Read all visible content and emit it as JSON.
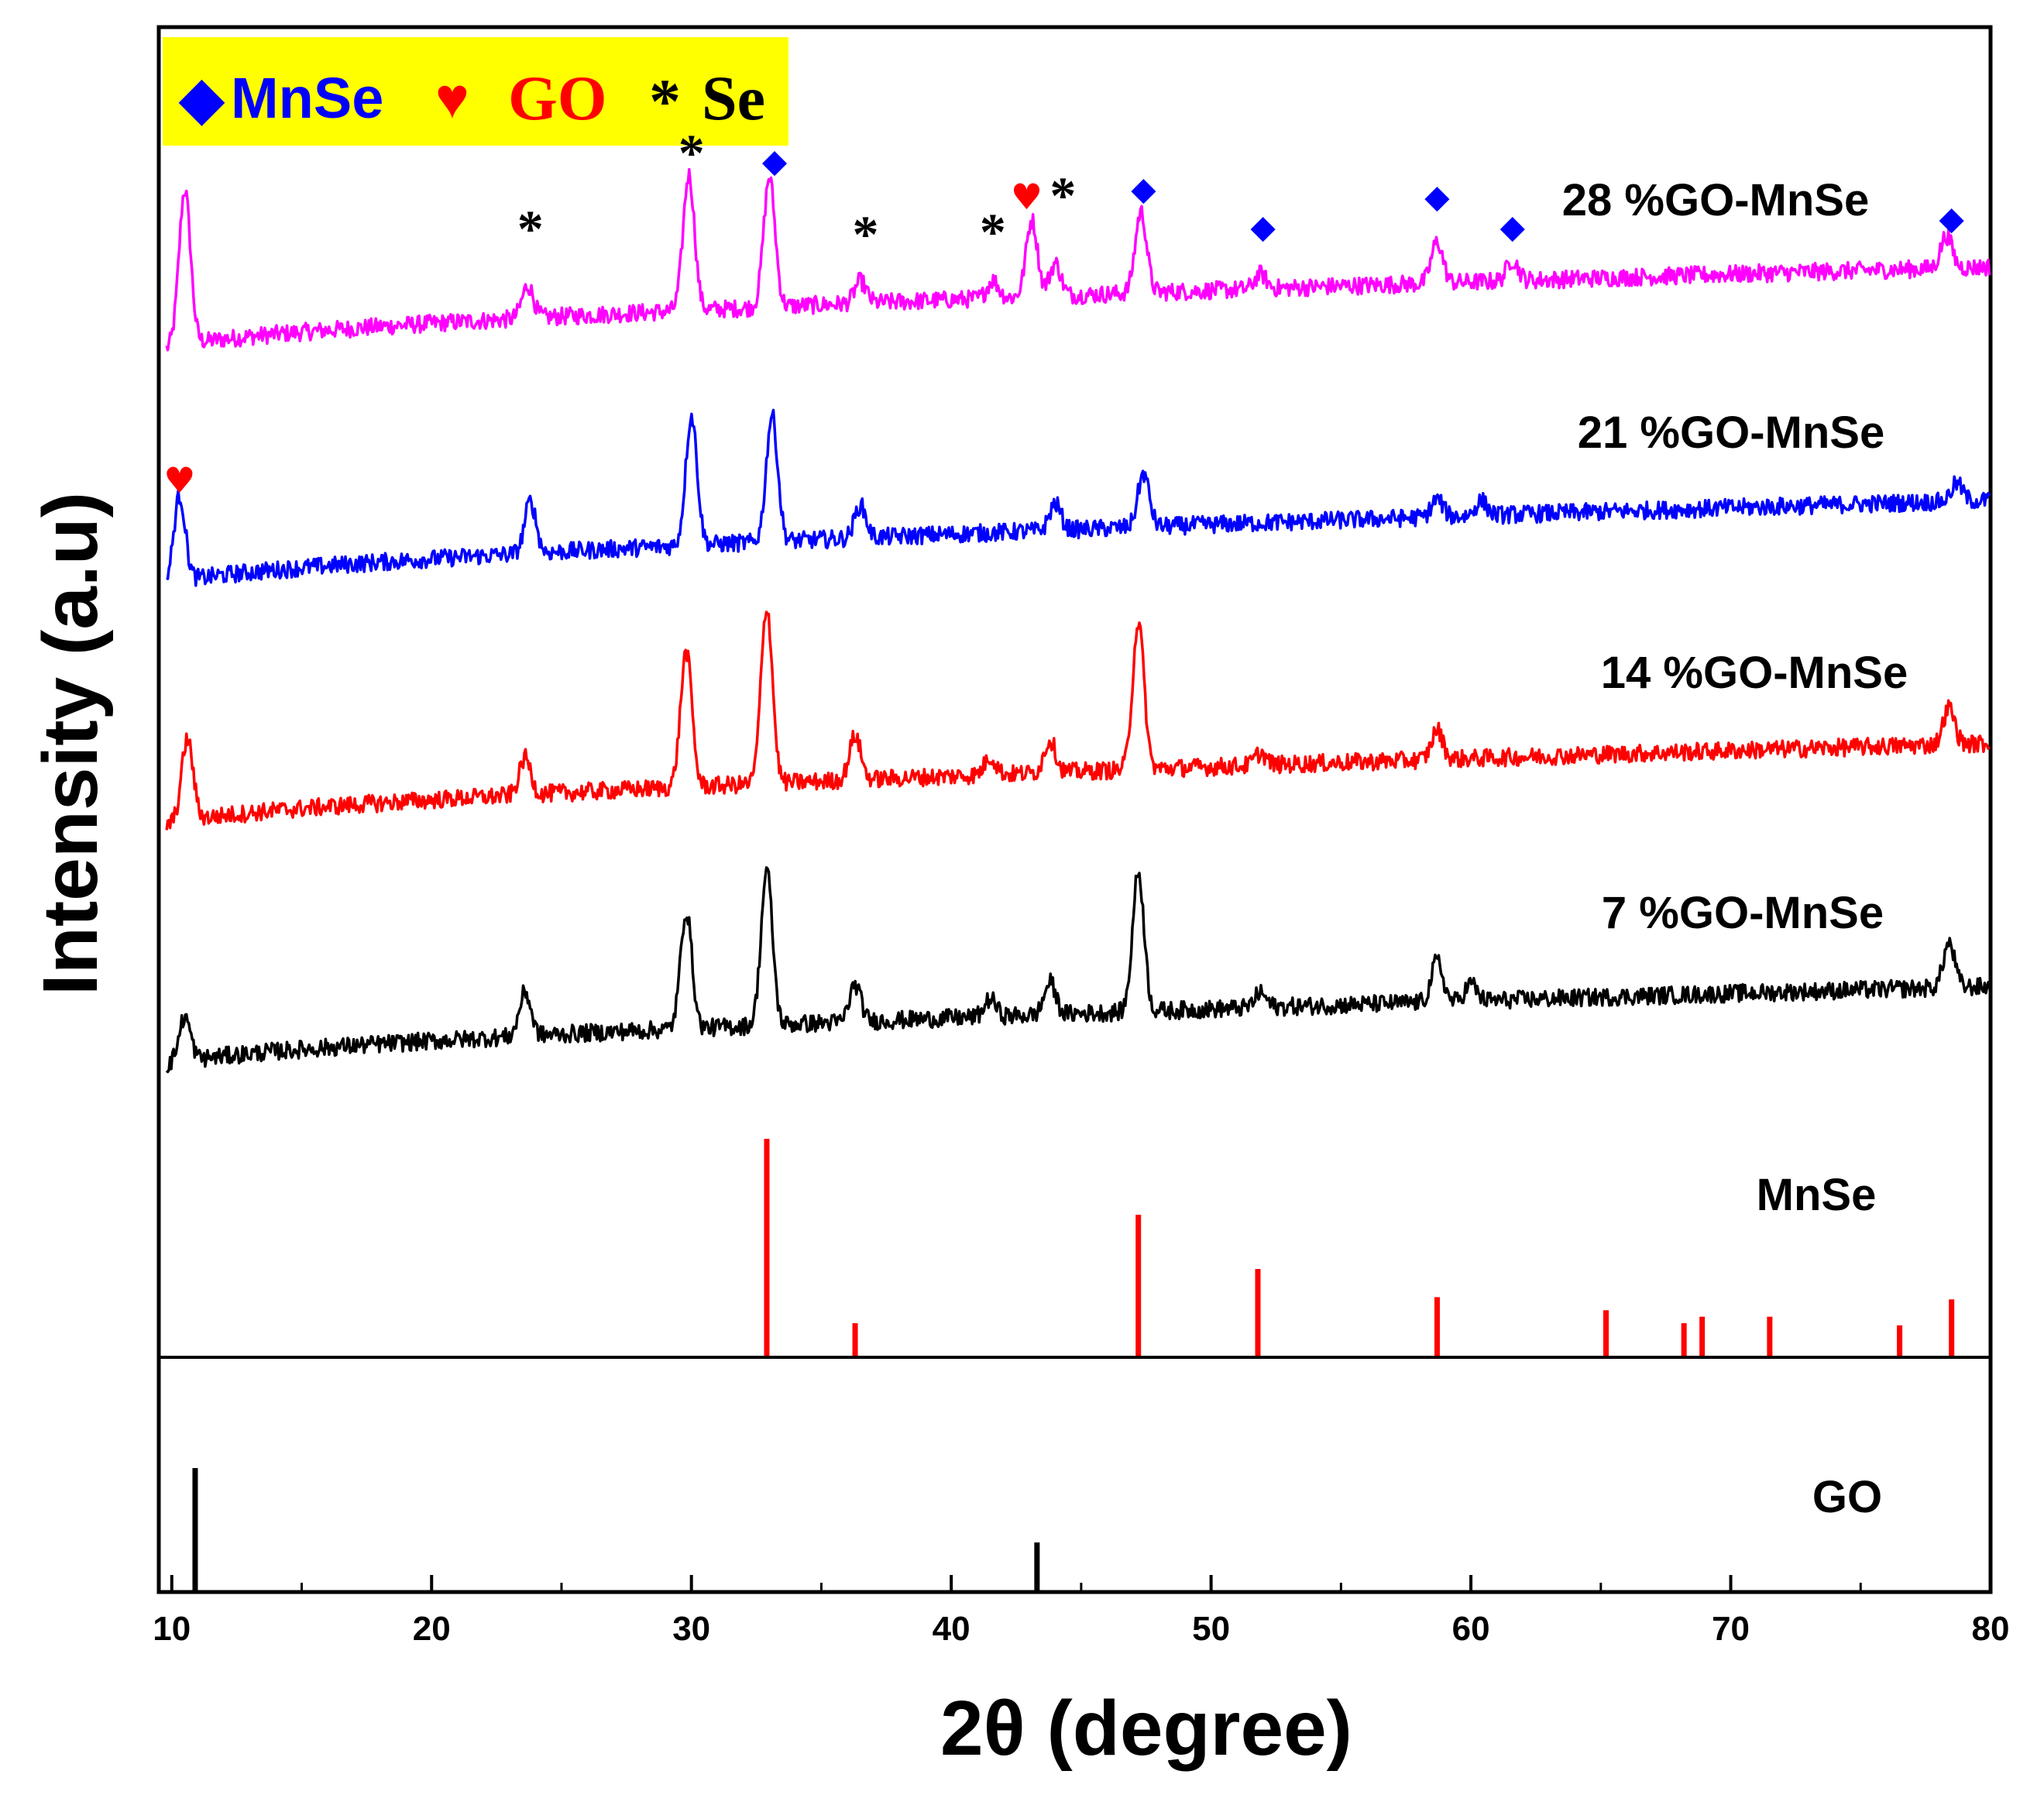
{
  "chart_data": {
    "type": "line",
    "title": "",
    "xlabel": "2θ (degree)",
    "ylabel": "Intensity (a.u)",
    "xlim": [
      9.5,
      80
    ],
    "xticks": [
      10,
      20,
      30,
      40,
      50,
      60,
      70,
      80
    ],
    "legend": {
      "position": "top-left",
      "entries": [
        {
          "symbol": "◆",
          "label": "MnSe",
          "color": "#0000ff"
        },
        {
          "symbol": "♥",
          "label": "GO",
          "color": "#ff0000"
        },
        {
          "symbol": "*",
          "label": "Se",
          "color": "#000000"
        }
      ]
    },
    "series": [
      {
        "name": "28 %GO-MnSe",
        "color": "#ff00ff",
        "baseline_start": 0.1,
        "baseline_end": 0.66,
        "peaks": [
          {
            "x": 10.5,
            "h": 1.05
          },
          {
            "x": 23.7,
            "h": 0.22
          },
          {
            "x": 29.9,
            "h": 0.92
          },
          {
            "x": 33.0,
            "h": 0.88
          },
          {
            "x": 36.5,
            "h": 0.15
          },
          {
            "x": 41.6,
            "h": 0.12
          },
          {
            "x": 43.1,
            "h": 0.52
          },
          {
            "x": 44.0,
            "h": 0.22
          },
          {
            "x": 47.3,
            "h": 0.55
          },
          {
            "x": 51.9,
            "h": 0.1
          },
          {
            "x": 58.7,
            "h": 0.28
          },
          {
            "x": 61.6,
            "h": 0.14
          },
          {
            "x": 78.3,
            "h": 0.22
          }
        ]
      },
      {
        "name": "21 %GO-MnSe",
        "color": "#0000ff",
        "baseline_start": 0.1,
        "baseline_end": 0.68,
        "peaks": [
          {
            "x": 10.3,
            "h": 0.58
          },
          {
            "x": 23.8,
            "h": 0.35
          },
          {
            "x": 30.0,
            "h": 0.88
          },
          {
            "x": 33.1,
            "h": 0.86
          },
          {
            "x": 36.5,
            "h": 0.22
          },
          {
            "x": 44.0,
            "h": 0.18
          },
          {
            "x": 47.4,
            "h": 0.36
          },
          {
            "x": 58.7,
            "h": 0.12
          },
          {
            "x": 60.4,
            "h": 0.1
          },
          {
            "x": 78.7,
            "h": 0.12
          }
        ]
      },
      {
        "name": "14 %GO-MnSe",
        "color": "#ff0000",
        "baseline_start": 0.1,
        "baseline_end": 0.66,
        "peaks": [
          {
            "x": 10.6,
            "h": 0.55
          },
          {
            "x": 23.6,
            "h": 0.25
          },
          {
            "x": 29.8,
            "h": 0.92
          },
          {
            "x": 32.9,
            "h": 1.2
          },
          {
            "x": 36.3,
            "h": 0.3
          },
          {
            "x": 41.5,
            "h": 0.12
          },
          {
            "x": 43.8,
            "h": 0.22
          },
          {
            "x": 47.2,
            "h": 1.0
          },
          {
            "x": 51.9,
            "h": 0.08
          },
          {
            "x": 58.7,
            "h": 0.2
          },
          {
            "x": 78.4,
            "h": 0.25
          }
        ]
      },
      {
        "name": "7 %GO-MnSe",
        "color": "#000000",
        "baseline_start": 0.1,
        "baseline_end": 0.64,
        "peaks": [
          {
            "x": 10.5,
            "h": 0.3
          },
          {
            "x": 23.6,
            "h": 0.3
          },
          {
            "x": 29.8,
            "h": 0.8
          },
          {
            "x": 32.9,
            "h": 1.05
          },
          {
            "x": 36.3,
            "h": 0.25
          },
          {
            "x": 41.5,
            "h": 0.12
          },
          {
            "x": 43.8,
            "h": 0.22
          },
          {
            "x": 47.2,
            "h": 0.95
          },
          {
            "x": 51.9,
            "h": 0.1
          },
          {
            "x": 58.7,
            "h": 0.28
          },
          {
            "x": 60.0,
            "h": 0.12
          },
          {
            "x": 78.4,
            "h": 0.3
          }
        ]
      }
    ],
    "reference_patterns": [
      {
        "name": "MnSe",
        "color": "#ff0000",
        "lines": [
          {
            "x": 32.9,
            "i": 100
          },
          {
            "x": 36.3,
            "i": 15
          },
          {
            "x": 47.2,
            "i": 65
          },
          {
            "x": 51.8,
            "i": 40
          },
          {
            "x": 58.7,
            "i": 27
          },
          {
            "x": 65.2,
            "i": 21
          },
          {
            "x": 68.2,
            "i": 15
          },
          {
            "x": 68.9,
            "i": 18
          },
          {
            "x": 71.5,
            "i": 18
          },
          {
            "x": 76.5,
            "i": 14
          },
          {
            "x": 78.5,
            "i": 26
          }
        ]
      },
      {
        "name": "GO",
        "color": "#000000",
        "lines": [
          {
            "x": 10.9,
            "i": 100
          },
          {
            "x": 43.3,
            "i": 40
          }
        ]
      }
    ],
    "peak_markers": [
      {
        "x": 23.8,
        "symbol": "*",
        "color": "#000000"
      },
      {
        "x": 30.0,
        "symbol": "*",
        "color": "#000000"
      },
      {
        "x": 33.2,
        "symbol": "◆",
        "color": "#0000ff"
      },
      {
        "x": 36.7,
        "symbol": "*",
        "color": "#000000"
      },
      {
        "x": 41.6,
        "symbol": "*",
        "color": "#000000"
      },
      {
        "x": 42.9,
        "symbol": "♥",
        "color": "#ff0000"
      },
      {
        "x": 44.0,
        "symbol": "*",
        "color": "#000000"
      },
      {
        "x": 47.4,
        "symbol": "◆",
        "color": "#0000ff"
      },
      {
        "x": 52.0,
        "symbol": "◆",
        "color": "#0000ff"
      },
      {
        "x": 58.7,
        "symbol": "◆",
        "color": "#0000ff"
      },
      {
        "x": 61.6,
        "symbol": "◆",
        "color": "#0000ff"
      },
      {
        "x": 78.5,
        "symbol": "◆",
        "color": "#0000ff"
      },
      {
        "x": 10.3,
        "symbol": "♥",
        "color": "#ff0000"
      }
    ]
  }
}
